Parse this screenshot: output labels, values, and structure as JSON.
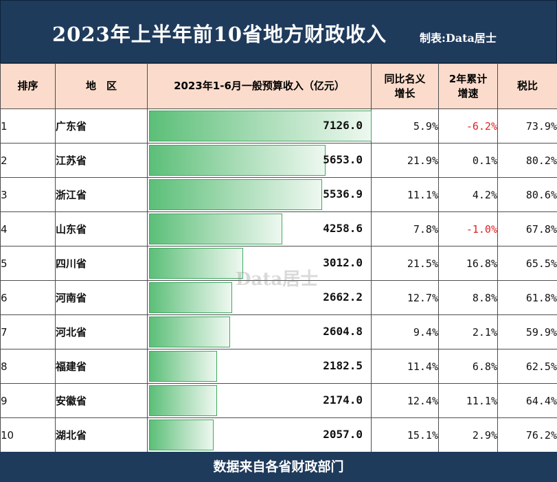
{
  "header": {
    "title": "2023年上半年前10省地方财政收入",
    "credit": "制表:Data居士"
  },
  "columns": {
    "rank": "排序",
    "region": "地　区",
    "revenue": "2023年1-6月一般预算收入（亿元）",
    "yoy_line1": "同比名义",
    "yoy_line2": "增长",
    "two_year_line1": "2年累计",
    "two_year_line2": "增速",
    "tax_ratio": "税比"
  },
  "colors": {
    "header_bg": "#1f3b5c",
    "column_header_bg": "#fbdccc",
    "bar_green": "#5bbf78",
    "negative_red": "#e02020"
  },
  "chart_data": {
    "type": "table",
    "bar_max": 7126.0,
    "rows": [
      {
        "rank": "1",
        "region": "广东省",
        "revenue": "7126.0",
        "value": 7126.0,
        "yoy": "5.9%",
        "two_year": "-6.2%",
        "tax_ratio": "73.9%"
      },
      {
        "rank": "2",
        "region": "江苏省",
        "revenue": "5653.0",
        "value": 5653.0,
        "yoy": "21.9%",
        "two_year": "0.1%",
        "tax_ratio": "80.2%"
      },
      {
        "rank": "3",
        "region": "浙江省",
        "revenue": "5536.9",
        "value": 5536.9,
        "yoy": "11.1%",
        "two_year": "4.2%",
        "tax_ratio": "80.6%"
      },
      {
        "rank": "4",
        "region": "山东省",
        "revenue": "4258.6",
        "value": 4258.6,
        "yoy": "7.8%",
        "two_year": "-1.0%",
        "tax_ratio": "67.8%"
      },
      {
        "rank": "5",
        "region": "四川省",
        "revenue": "3012.0",
        "value": 3012.0,
        "yoy": "21.5%",
        "two_year": "16.8%",
        "tax_ratio": "65.5%"
      },
      {
        "rank": "6",
        "region": "河南省",
        "revenue": "2662.2",
        "value": 2662.2,
        "yoy": "12.7%",
        "two_year": "8.8%",
        "tax_ratio": "61.8%"
      },
      {
        "rank": "7",
        "region": "河北省",
        "revenue": "2604.8",
        "value": 2604.8,
        "yoy": "9.4%",
        "two_year": "2.1%",
        "tax_ratio": "59.9%"
      },
      {
        "rank": "8",
        "region": "福建省",
        "revenue": "2182.5",
        "value": 2182.5,
        "yoy": "11.4%",
        "two_year": "6.8%",
        "tax_ratio": "62.5%"
      },
      {
        "rank": "9",
        "region": "安徽省",
        "revenue": "2174.0",
        "value": 2174.0,
        "yoy": "12.4%",
        "two_year": "11.1%",
        "tax_ratio": "64.4%"
      },
      {
        "rank": "10",
        "region": "湖北省",
        "revenue": "2057.0",
        "value": 2057.0,
        "yoy": "15.1%",
        "two_year": "2.9%",
        "tax_ratio": "76.2%"
      }
    ]
  },
  "watermark": "Data居士",
  "footer": {
    "source": "数据来自各省财政部门"
  }
}
